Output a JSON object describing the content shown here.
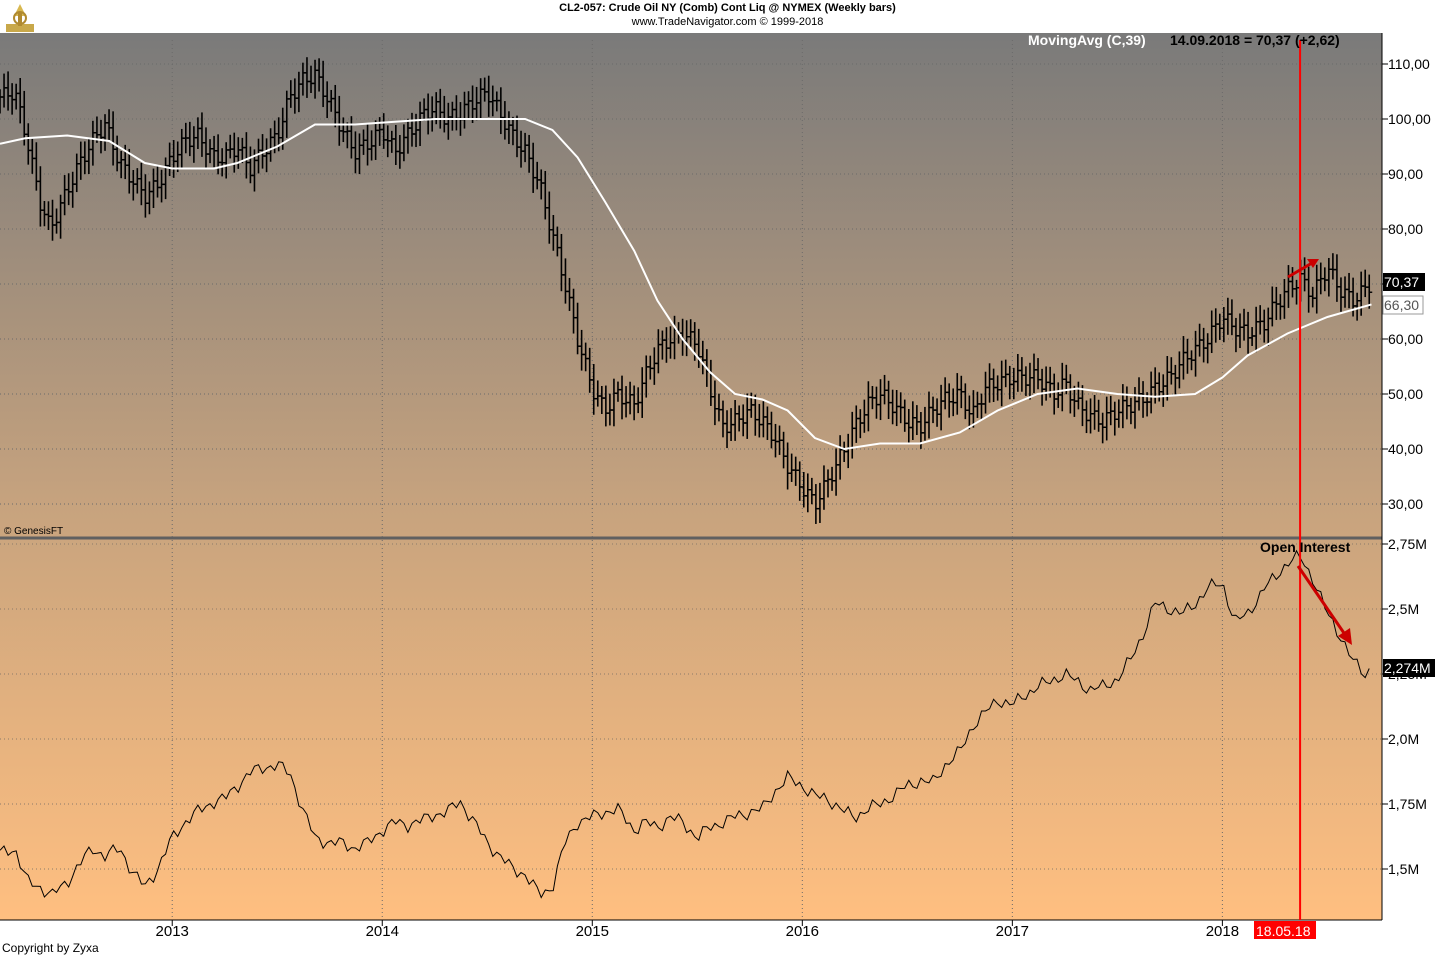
{
  "header": {
    "title": "CL2-057:  Crude Oil NY (Comb) Cont Liq @ NYMEX  (Weekly bars)",
    "subtitle": "www.TradeNavigator.com © 1999-2018"
  },
  "footer": {
    "copyright": "Copyright by Zyxa"
  },
  "colors": {
    "gradient_top": "#7a7a7a",
    "gradient_bottom": "#ffbf80",
    "price": "#000000",
    "ma": "#ffffff",
    "annotation": "#cc0000",
    "marker": "#ff0000"
  },
  "chart_data": [
    {
      "type": "bar",
      "kind": "ohlc-weekly",
      "source_credit": "© GenesisFT",
      "indicator_label": "MovingAvg (C,39)",
      "indicator_value_text": "14.09.2018 = 70,37 (+2,62)",
      "last_price_label": "70,37",
      "ma_last_label": "66,30",
      "ylim": [
        25,
        113
      ],
      "yticks": [
        30,
        40,
        50,
        60,
        70,
        80,
        90,
        100,
        110
      ],
      "ytick_labels": [
        "30,00",
        "40,00",
        "50,00",
        "60,00",
        "70,00",
        "80,00",
        "90,00",
        "100,00",
        "110,00"
      ],
      "x_range": [
        2012.18,
        2018.76
      ],
      "price_path": [
        [
          2012.18,
          104
        ],
        [
          2012.25,
          105
        ],
        [
          2012.31,
          96
        ],
        [
          2012.37,
          85
        ],
        [
          2012.42,
          80
        ],
        [
          2012.5,
          87
        ],
        [
          2012.56,
          92
        ],
        [
          2012.62,
          96
        ],
        [
          2012.68,
          99
        ],
        [
          2012.75,
          92
        ],
        [
          2012.81,
          89
        ],
        [
          2012.87,
          86
        ],
        [
          2012.93,
          88
        ],
        [
          2013.0,
          93
        ],
        [
          2013.06,
          96
        ],
        [
          2013.12,
          97
        ],
        [
          2013.2,
          93
        ],
        [
          2013.25,
          93
        ],
        [
          2013.31,
          95
        ],
        [
          2013.37,
          91
        ],
        [
          2013.43,
          94
        ],
        [
          2013.5,
          97
        ],
        [
          2013.56,
          104
        ],
        [
          2013.62,
          107
        ],
        [
          2013.68,
          108
        ],
        [
          2013.75,
          103
        ],
        [
          2013.81,
          98
        ],
        [
          2013.87,
          94
        ],
        [
          2013.95,
          96
        ],
        [
          2014.0,
          98
        ],
        [
          2014.06,
          94
        ],
        [
          2014.12,
          97
        ],
        [
          2014.2,
          101
        ],
        [
          2014.25,
          102
        ],
        [
          2014.31,
          100
        ],
        [
          2014.37,
          101
        ],
        [
          2014.43,
          103
        ],
        [
          2014.5,
          105
        ],
        [
          2014.56,
          101
        ],
        [
          2014.62,
          97
        ],
        [
          2014.68,
          94
        ],
        [
          2014.75,
          88
        ],
        [
          2014.81,
          79
        ],
        [
          2014.87,
          70
        ],
        [
          2014.93,
          60
        ],
        [
          2015.0,
          51
        ],
        [
          2015.06,
          47
        ],
        [
          2015.12,
          50
        ],
        [
          2015.2,
          48
        ],
        [
          2015.25,
          53
        ],
        [
          2015.31,
          58
        ],
        [
          2015.37,
          60
        ],
        [
          2015.43,
          61
        ],
        [
          2015.5,
          59
        ],
        [
          2015.56,
          51
        ],
        [
          2015.62,
          44
        ],
        [
          2015.68,
          45
        ],
        [
          2015.75,
          47
        ],
        [
          2015.81,
          45
        ],
        [
          2015.87,
          42
        ],
        [
          2015.93,
          37
        ],
        [
          2016.0,
          33
        ],
        [
          2016.06,
          30
        ],
        [
          2016.12,
          34
        ],
        [
          2016.2,
          40
        ],
        [
          2016.25,
          44
        ],
        [
          2016.31,
          48
        ],
        [
          2016.37,
          50
        ],
        [
          2016.43,
          48
        ],
        [
          2016.5,
          45
        ],
        [
          2016.56,
          44
        ],
        [
          2016.62,
          47
        ],
        [
          2016.68,
          49
        ],
        [
          2016.75,
          50
        ],
        [
          2016.81,
          46
        ],
        [
          2016.87,
          51
        ],
        [
          2016.93,
          52
        ],
        [
          2017.0,
          53
        ],
        [
          2017.06,
          53
        ],
        [
          2017.12,
          53
        ],
        [
          2017.2,
          50
        ],
        [
          2017.25,
          52
        ],
        [
          2017.31,
          48
        ],
        [
          2017.37,
          46
        ],
        [
          2017.43,
          45
        ],
        [
          2017.5,
          47
        ],
        [
          2017.56,
          48
        ],
        [
          2017.62,
          49
        ],
        [
          2017.68,
          51
        ],
        [
          2017.75,
          53
        ],
        [
          2017.81,
          56
        ],
        [
          2017.87,
          58
        ],
        [
          2017.93,
          60
        ],
        [
          2018.0,
          64
        ],
        [
          2018.06,
          62
        ],
        [
          2018.12,
          61
        ],
        [
          2018.2,
          63
        ],
        [
          2018.25,
          66
        ],
        [
          2018.31,
          69
        ],
        [
          2018.37,
          71
        ],
        [
          2018.43,
          68
        ],
        [
          2018.5,
          73
        ],
        [
          2018.56,
          69
        ],
        [
          2018.62,
          67
        ],
        [
          2018.68,
          69
        ],
        [
          2018.71,
          70.37
        ]
      ],
      "ma_path": [
        [
          2012.18,
          95.5
        ],
        [
          2012.3,
          96.5
        ],
        [
          2012.5,
          97
        ],
        [
          2012.7,
          96
        ],
        [
          2012.87,
          92
        ],
        [
          2013.0,
          91
        ],
        [
          2013.2,
          91
        ],
        [
          2013.31,
          92
        ],
        [
          2013.5,
          95
        ],
        [
          2013.68,
          99
        ],
        [
          2013.87,
          99
        ],
        [
          2014.06,
          99.5
        ],
        [
          2014.25,
          100
        ],
        [
          2014.5,
          100
        ],
        [
          2014.68,
          100
        ],
        [
          2014.81,
          98
        ],
        [
          2014.93,
          93
        ],
        [
          2015.06,
          85
        ],
        [
          2015.2,
          76
        ],
        [
          2015.31,
          67
        ],
        [
          2015.43,
          60
        ],
        [
          2015.56,
          54
        ],
        [
          2015.68,
          50
        ],
        [
          2015.81,
          49
        ],
        [
          2015.93,
          47
        ],
        [
          2016.06,
          42
        ],
        [
          2016.2,
          40
        ],
        [
          2016.37,
          41
        ],
        [
          2016.56,
          41
        ],
        [
          2016.75,
          43
        ],
        [
          2016.93,
          47
        ],
        [
          2017.12,
          50
        ],
        [
          2017.31,
          51
        ],
        [
          2017.5,
          50
        ],
        [
          2017.68,
          49.5
        ],
        [
          2017.87,
          50
        ],
        [
          2018.0,
          53
        ],
        [
          2018.12,
          57
        ],
        [
          2018.31,
          61
        ],
        [
          2018.5,
          64
        ],
        [
          2018.71,
          66.3
        ]
      ]
    },
    {
      "type": "line",
      "title": "Open Interest",
      "last_value_label": "2,274M",
      "ylim": [
        1.3,
        2.75
      ],
      "yticks": [
        1.5,
        1.75,
        2.0,
        2.25,
        2.5,
        2.75
      ],
      "ytick_labels": [
        "1,5M",
        "1,75M",
        "2,0M",
        "2,25M",
        "2,5M",
        "2,75M"
      ],
      "x_range": [
        2012.18,
        2018.76
      ],
      "x_ticks": [
        2013,
        2014,
        2015,
        2016,
        2017,
        2018
      ],
      "x_tick_labels": [
        "2013",
        "2014",
        "2015",
        "2016",
        "2017",
        "2018"
      ],
      "marker_date_label": "18.05.18",
      "marker_x": 2018.37,
      "values": [
        [
          2012.18,
          1.56
        ],
        [
          2012.25,
          1.58
        ],
        [
          2012.31,
          1.45
        ],
        [
          2012.37,
          1.43
        ],
        [
          2012.43,
          1.4
        ],
        [
          2012.5,
          1.45
        ],
        [
          2012.56,
          1.52
        ],
        [
          2012.62,
          1.58
        ],
        [
          2012.68,
          1.55
        ],
        [
          2012.75,
          1.58
        ],
        [
          2012.81,
          1.49
        ],
        [
          2012.87,
          1.43
        ],
        [
          2012.93,
          1.5
        ],
        [
          2013.0,
          1.62
        ],
        [
          2013.06,
          1.68
        ],
        [
          2013.12,
          1.72
        ],
        [
          2013.2,
          1.76
        ],
        [
          2013.25,
          1.77
        ],
        [
          2013.31,
          1.82
        ],
        [
          2013.37,
          1.87
        ],
        [
          2013.43,
          1.89
        ],
        [
          2013.5,
          1.9
        ],
        [
          2013.56,
          1.87
        ],
        [
          2013.62,
          1.73
        ],
        [
          2013.68,
          1.62
        ],
        [
          2013.75,
          1.6
        ],
        [
          2013.81,
          1.6
        ],
        [
          2013.87,
          1.58
        ],
        [
          2013.93,
          1.6
        ],
        [
          2014.0,
          1.65
        ],
        [
          2014.06,
          1.68
        ],
        [
          2014.12,
          1.67
        ],
        [
          2014.2,
          1.69
        ],
        [
          2014.25,
          1.71
        ],
        [
          2014.31,
          1.72
        ],
        [
          2014.37,
          1.76
        ],
        [
          2014.43,
          1.69
        ],
        [
          2014.5,
          1.6
        ],
        [
          2014.56,
          1.55
        ],
        [
          2014.62,
          1.5
        ],
        [
          2014.68,
          1.48
        ],
        [
          2014.75,
          1.4
        ],
        [
          2014.81,
          1.43
        ],
        [
          2014.87,
          1.6
        ],
        [
          2014.93,
          1.68
        ],
        [
          2015.0,
          1.7
        ],
        [
          2015.06,
          1.72
        ],
        [
          2015.12,
          1.73
        ],
        [
          2015.2,
          1.65
        ],
        [
          2015.25,
          1.68
        ],
        [
          2015.31,
          1.66
        ],
        [
          2015.37,
          1.7
        ],
        [
          2015.43,
          1.68
        ],
        [
          2015.5,
          1.62
        ],
        [
          2015.56,
          1.66
        ],
        [
          2015.62,
          1.68
        ],
        [
          2015.68,
          1.7
        ],
        [
          2015.75,
          1.72
        ],
        [
          2015.81,
          1.73
        ],
        [
          2015.87,
          1.8
        ],
        [
          2015.93,
          1.85
        ],
        [
          2016.0,
          1.82
        ],
        [
          2016.06,
          1.78
        ],
        [
          2016.12,
          1.77
        ],
        [
          2016.2,
          1.72
        ],
        [
          2016.25,
          1.7
        ],
        [
          2016.31,
          1.73
        ],
        [
          2016.37,
          1.75
        ],
        [
          2016.43,
          1.78
        ],
        [
          2016.5,
          1.82
        ],
        [
          2016.56,
          1.84
        ],
        [
          2016.62,
          1.83
        ],
        [
          2016.68,
          1.9
        ],
        [
          2016.75,
          1.95
        ],
        [
          2016.81,
          2.05
        ],
        [
          2016.87,
          2.1
        ],
        [
          2016.93,
          2.15
        ],
        [
          2017.0,
          2.13
        ],
        [
          2017.06,
          2.17
        ],
        [
          2017.12,
          2.2
        ],
        [
          2017.2,
          2.23
        ],
        [
          2017.25,
          2.25
        ],
        [
          2017.31,
          2.22
        ],
        [
          2017.37,
          2.19
        ],
        [
          2017.43,
          2.2
        ],
        [
          2017.5,
          2.23
        ],
        [
          2017.56,
          2.3
        ],
        [
          2017.62,
          2.4
        ],
        [
          2017.68,
          2.52
        ],
        [
          2017.75,
          2.5
        ],
        [
          2017.81,
          2.48
        ],
        [
          2017.87,
          2.52
        ],
        [
          2017.93,
          2.58
        ],
        [
          2018.0,
          2.6
        ],
        [
          2018.06,
          2.45
        ],
        [
          2018.12,
          2.48
        ],
        [
          2018.2,
          2.58
        ],
        [
          2018.25,
          2.62
        ],
        [
          2018.31,
          2.68
        ],
        [
          2018.37,
          2.7
        ],
        [
          2018.43,
          2.62
        ],
        [
          2018.5,
          2.48
        ],
        [
          2018.56,
          2.4
        ],
        [
          2018.62,
          2.3
        ],
        [
          2018.68,
          2.25
        ],
        [
          2018.71,
          2.274
        ]
      ]
    }
  ]
}
